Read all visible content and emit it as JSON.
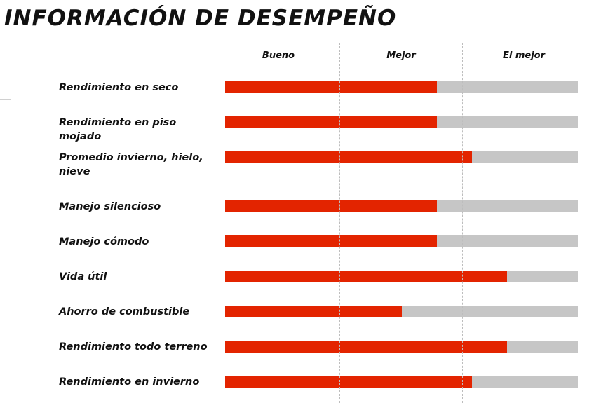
{
  "title": "INFORMACIÓN DE DESEMPEÑO",
  "colors": {
    "fill": "#e32400",
    "track": "#c6c6c6",
    "text": "#111111"
  },
  "chart_data": {
    "type": "bar",
    "orientation": "horizontal",
    "scale_levels": [
      "Bueno",
      "Mejor",
      "El mejor"
    ],
    "xlim": [
      0,
      10
    ],
    "grid": true,
    "categories": [
      "Rendimiento en seco",
      "Rendimiento en piso mojado",
      "Promedio invierno, hielo, nieve",
      "Manejo silencioso",
      "Manejo cómodo",
      "Vida útil",
      "Ahorro de combustible",
      "Rendimiento todo terreno",
      "Rendimiento en invierno"
    ],
    "values": [
      6,
      6,
      7,
      6,
      6,
      8,
      5,
      8,
      7
    ]
  }
}
